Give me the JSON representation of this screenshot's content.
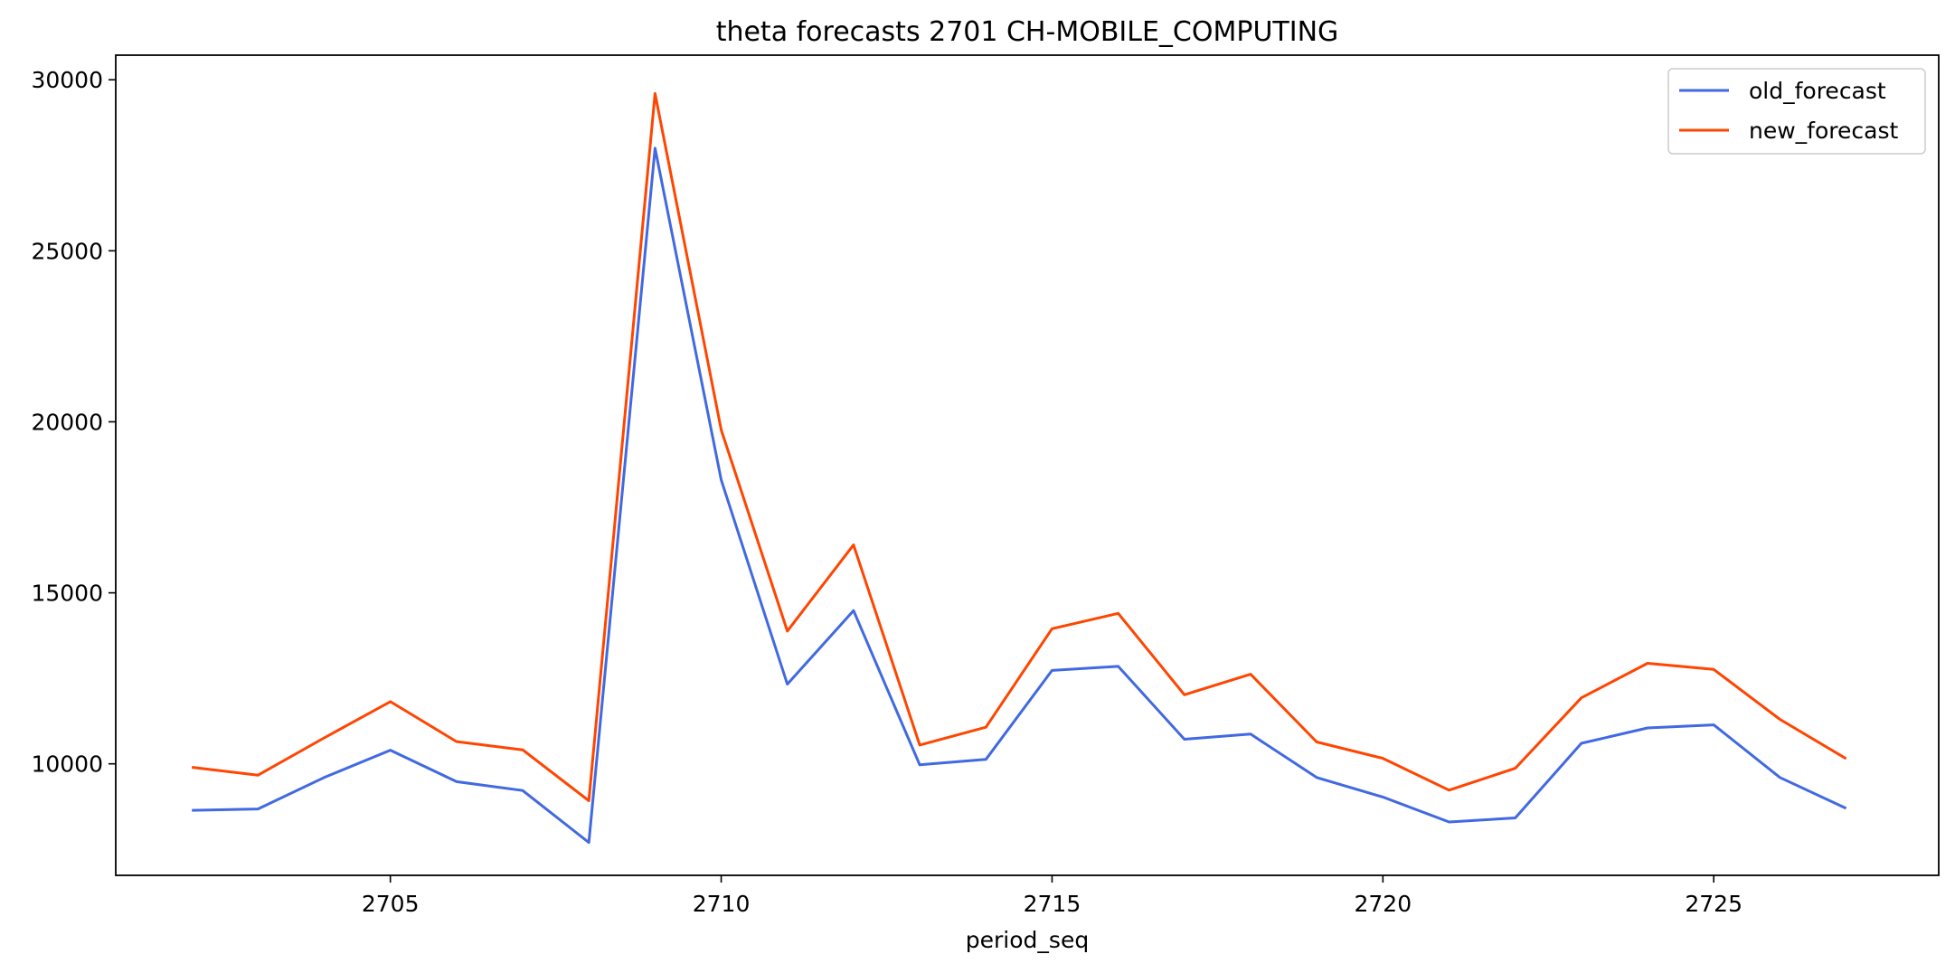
{
  "chart_data": {
    "type": "line",
    "title": "theta forecasts 2701 CH-MOBILE_COMPUTING",
    "xlabel": "period_seq",
    "ylabel": "",
    "x": [
      2702,
      2703,
      2704,
      2705,
      2706,
      2707,
      2708,
      2709,
      2710,
      2711,
      2712,
      2713,
      2714,
      2715,
      2716,
      2717,
      2718,
      2719,
      2720,
      2721,
      2722,
      2723,
      2724,
      2725,
      2726,
      2727
    ],
    "xlim": [
      2700.85,
      2728.4
    ],
    "ylim": [
      6740,
      30720
    ],
    "x_ticks": [
      2705,
      2710,
      2715,
      2720,
      2725
    ],
    "y_ticks": [
      10000,
      15000,
      20000,
      25000,
      30000
    ],
    "grid": false,
    "legend_position": "top-right",
    "series": [
      {
        "name": "old_forecast",
        "color": "#4169e1",
        "values": [
          8640,
          8680,
          9600,
          10400,
          9480,
          9220,
          7700,
          28000,
          18300,
          12330,
          14480,
          9970,
          10130,
          12730,
          12850,
          10720,
          10870,
          9600,
          9030,
          8300,
          8420,
          10600,
          11050,
          11140,
          9600,
          8700
        ]
      },
      {
        "name": "new_forecast",
        "color": "#ff4500",
        "values": [
          9900,
          9670,
          10760,
          11820,
          10650,
          10410,
          8920,
          29600,
          19760,
          13880,
          16400,
          10550,
          11070,
          13950,
          14400,
          12020,
          12620,
          10640,
          10160,
          9230,
          9870,
          11930,
          12940,
          12760,
          11300,
          10150
        ]
      }
    ]
  }
}
